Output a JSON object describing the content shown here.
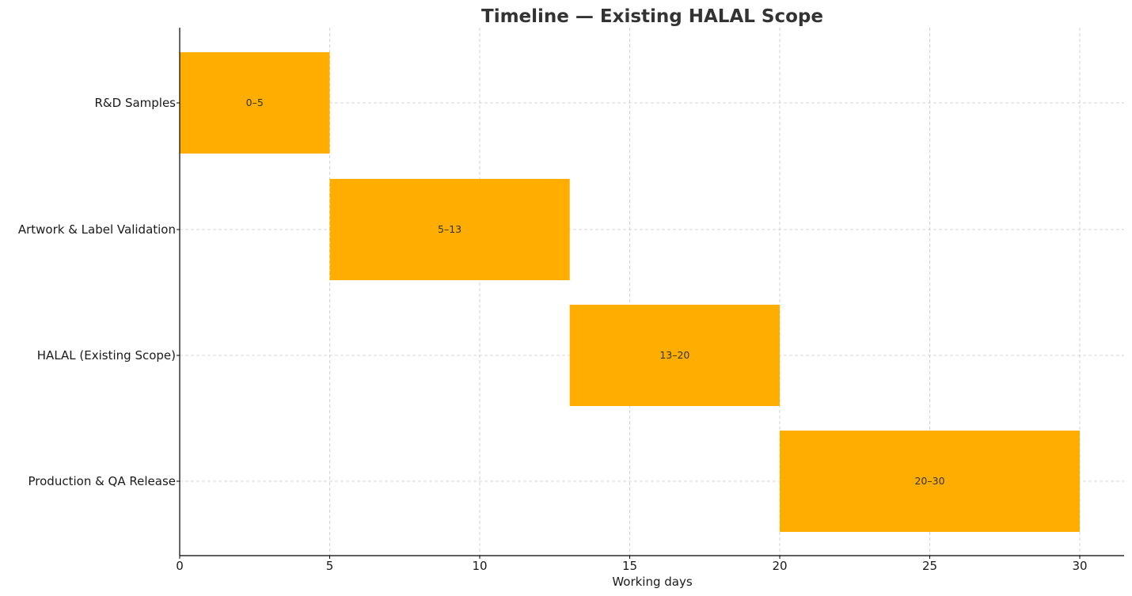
{
  "chart_data": {
    "type": "bar",
    "orientation": "horizontal",
    "subtype": "gantt",
    "title": "Timeline — Existing HALAL Scope",
    "xlabel": "Working days",
    "ylabel": "",
    "xlim": [
      0,
      31.5
    ],
    "xticks": [
      0,
      5,
      10,
      15,
      20,
      25,
      30
    ],
    "grid": true,
    "legend": null,
    "bar_color": "#FFAE00",
    "categories": [
      "R&D Samples",
      "Artwork & Label Validation",
      "HALAL (Existing Scope)",
      "Production & QA Release"
    ],
    "tasks": [
      {
        "name": "R&D Samples",
        "start": 0,
        "end": 5,
        "duration": 5,
        "label": "0–5"
      },
      {
        "name": "Artwork & Label Validation",
        "start": 5,
        "end": 13,
        "duration": 8,
        "label": "5–13"
      },
      {
        "name": "HALAL (Existing Scope)",
        "start": 13,
        "end": 20,
        "duration": 7,
        "label": "13–20"
      },
      {
        "name": "Production & QA Release",
        "start": 20,
        "end": 30,
        "duration": 10,
        "label": "20–30"
      }
    ]
  }
}
